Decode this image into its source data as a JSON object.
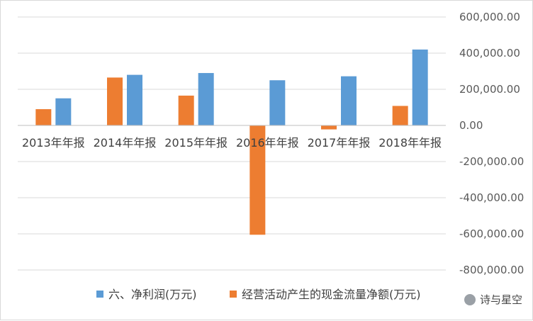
{
  "chart_data": {
    "type": "bar",
    "categories": [
      "2013年年报",
      "2014年年报",
      "2015年年报",
      "2016年年报",
      "2017年年报",
      "2018年年报"
    ],
    "series": [
      {
        "name": "六、净利润(万元)",
        "color": "#5b9bd5",
        "values": [
          150000,
          280000,
          290000,
          250000,
          272000,
          420000
        ]
      },
      {
        "name": "经营活动产生的现金流量净额(万元)",
        "color": "#ed7d31",
        "values": [
          90000,
          265000,
          165000,
          -605000,
          -22000,
          108000
        ]
      }
    ],
    "yticks": [
      "600,000.00",
      "400,000.00",
      "200,000.00",
      "0.00",
      "-200,000.00",
      "-400,000.00",
      "-600,000.00",
      "-800,000.00"
    ],
    "ylim": [
      -800000,
      600000
    ],
    "grid": true,
    "yaxis_position": "right",
    "legend_position": "bottom"
  },
  "watermark": {
    "text": "诗与星空"
  }
}
